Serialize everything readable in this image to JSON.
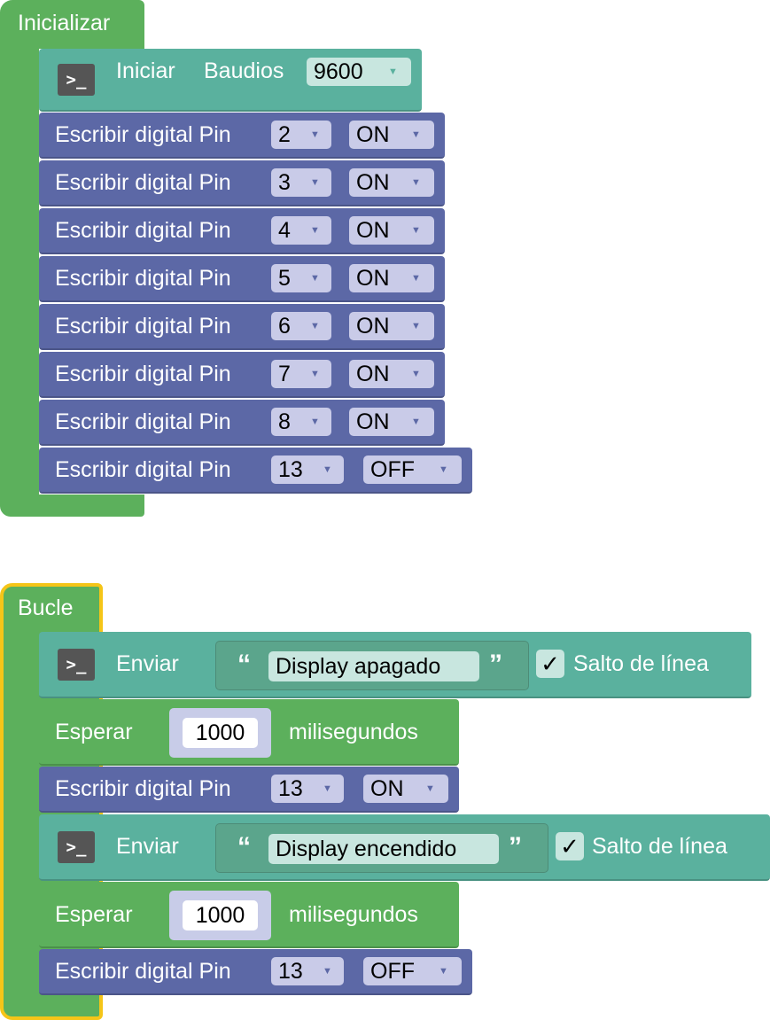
{
  "setup": {
    "hat_label": "Inicializar",
    "serial": {
      "iniciar": "Iniciar",
      "baud_label": "Baudios",
      "baud_value": "9600"
    },
    "rows": [
      {
        "label": "Escribir digital Pin",
        "pin": "2",
        "state": "ON"
      },
      {
        "label": "Escribir digital Pin",
        "pin": "3",
        "state": "ON"
      },
      {
        "label": "Escribir digital Pin",
        "pin": "4",
        "state": "ON"
      },
      {
        "label": "Escribir digital Pin",
        "pin": "5",
        "state": "ON"
      },
      {
        "label": "Escribir digital Pin",
        "pin": "6",
        "state": "ON"
      },
      {
        "label": "Escribir digital Pin",
        "pin": "7",
        "state": "ON"
      },
      {
        "label": "Escribir digital Pin",
        "pin": "8",
        "state": "ON"
      },
      {
        "label": "Escribir digital Pin",
        "pin": "13",
        "state": "OFF"
      }
    ]
  },
  "loop": {
    "hat_label": "Bucle",
    "send1": {
      "label": "Enviar",
      "open_quote": "“",
      "text": "Display apagado",
      "close_quote": "”",
      "newline_label": "Salto de línea",
      "check": "✓"
    },
    "wait1": {
      "label": "Esperar",
      "value": "1000",
      "unit": "milisegundos"
    },
    "write1": {
      "label": "Escribir digital Pin",
      "pin": "13",
      "state": "ON"
    },
    "send2": {
      "label": "Enviar",
      "open_quote": "“",
      "text": "Display encendido",
      "close_quote": "”",
      "newline_label": "Salto de línea",
      "check": "✓"
    },
    "wait2": {
      "label": "Esperar",
      "value": "1000",
      "unit": "milisegundos"
    },
    "write2": {
      "label": "Escribir digital Pin",
      "pin": "13",
      "state": "OFF"
    }
  },
  "icons": {
    "terminal": "terminal-icon",
    "dropdown": "dropdown-arrow-icon"
  },
  "colors": {
    "event_green": "#5cb05c",
    "serial_teal": "#5ab19e",
    "digital_blue": "#5c68a6",
    "selected_outline": "#f5c518",
    "terminal_icon": "#555555"
  }
}
